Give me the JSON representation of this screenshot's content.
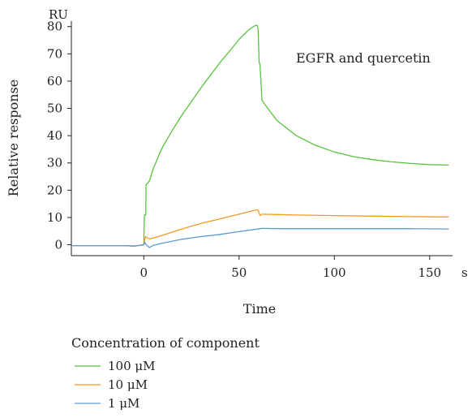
{
  "chart_data": {
    "type": "line",
    "title": "",
    "annotation": "EGFR and quercetin",
    "xlabel": "Time",
    "x_unit": "s",
    "ylabel": "Relative response",
    "y_unit": "RU",
    "xlim": [
      -38,
      162
    ],
    "ylim": [
      -4,
      82
    ],
    "x_ticks": [
      0,
      50,
      100,
      150
    ],
    "y_ticks": [
      0,
      10,
      20,
      30,
      40,
      50,
      60,
      70,
      80
    ],
    "grid": false,
    "legend_title": "Concentration of component",
    "legend_position": "bottom-left",
    "series": [
      {
        "name": "100 μM",
        "color": "#55c43b",
        "x": [
          -38,
          -10,
          -5,
          0,
          0.2,
          0.4,
          1,
          1.2,
          2,
          3,
          5,
          8,
          10,
          15,
          20,
          25,
          30,
          35,
          40,
          45,
          50,
          55,
          58,
          59.5,
          60,
          60.5,
          61,
          62,
          65,
          70,
          80,
          90,
          100,
          110,
          120,
          130,
          140,
          150,
          160
        ],
        "y": [
          -0.3,
          -0.3,
          -0.5,
          0,
          8,
          11,
          11,
          22,
          22.5,
          23.5,
          28,
          33,
          36,
          42,
          47.5,
          52.5,
          57.5,
          62.2,
          66.8,
          71,
          75.3,
          78.8,
          80.2,
          80.5,
          79,
          67,
          66,
          53,
          50,
          45.5,
          40,
          36.5,
          34,
          32.3,
          31.2,
          30.4,
          29.8,
          29.4,
          29.2
        ]
      },
      {
        "name": "10 μM",
        "color": "#f59b22",
        "x": [
          -38,
          -10,
          -5,
          0,
          0.5,
          1,
          2,
          3,
          5,
          10,
          20,
          30,
          40,
          50,
          55,
          58,
          59,
          60,
          61,
          62,
          70,
          80,
          100,
          120,
          140,
          160
        ],
        "y": [
          -0.3,
          -0.3,
          -0.5,
          0,
          2,
          3,
          2.5,
          2.2,
          2.5,
          3.5,
          5.8,
          7.8,
          9.5,
          11.2,
          12.1,
          12.6,
          12.8,
          12.7,
          10.7,
          11.2,
          11.1,
          10.9,
          10.7,
          10.5,
          10.3,
          10.2
        ]
      },
      {
        "name": "1 μM",
        "color": "#5c9bd1",
        "x": [
          -38,
          -10,
          -5,
          0,
          0.5,
          1,
          2,
          3,
          5,
          10,
          20,
          30,
          40,
          50,
          58,
          60,
          62,
          70,
          80,
          100,
          120,
          140,
          160
        ],
        "y": [
          -0.3,
          -0.3,
          -0.5,
          0,
          1,
          0.2,
          -0.5,
          -1,
          -0.2,
          0.6,
          2,
          3,
          3.8,
          4.8,
          5.6,
          5.8,
          6,
          5.9,
          5.9,
          5.9,
          5.9,
          5.9,
          5.8
        ]
      }
    ]
  }
}
